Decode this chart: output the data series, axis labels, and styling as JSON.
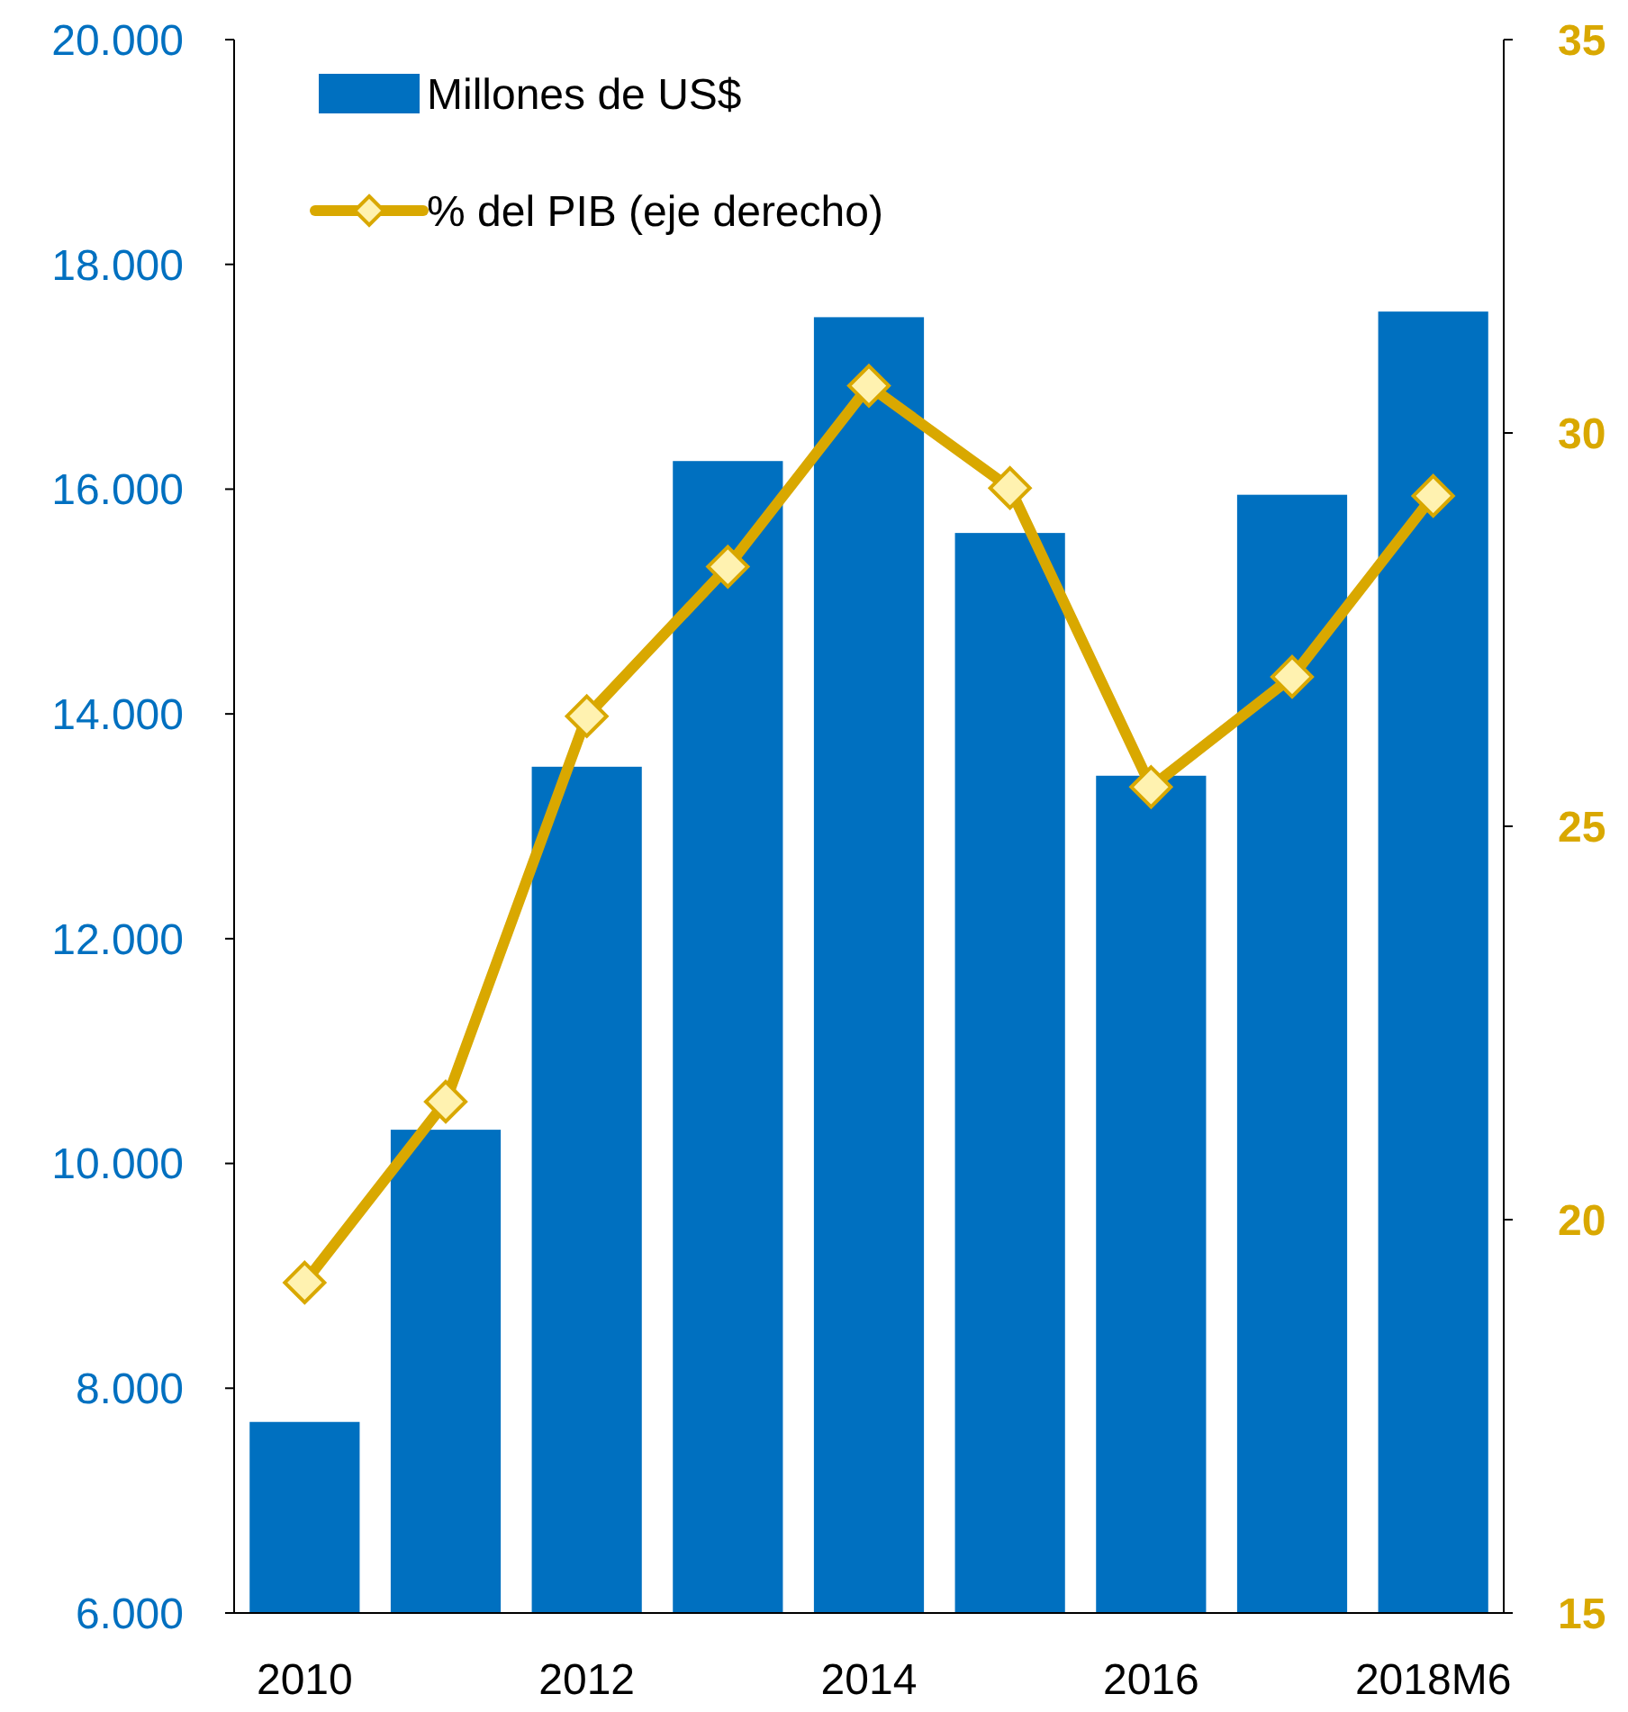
{
  "chart_data": {
    "type": "bar",
    "categories": [
      "2010",
      null,
      "2012",
      null,
      "2014",
      null,
      "2016",
      null,
      "2018M6"
    ],
    "series": [
      {
        "name": "Millones de US$",
        "color": "#0070c0",
        "values": [
          7700,
          10300,
          13530,
          16250,
          17530,
          15610,
          13450,
          15950,
          17580
        ]
      },
      {
        "name": "% del PIB (eje derecho)",
        "type": "line",
        "axis": "y2",
        "color": "#d9a800",
        "marker": "diamond",
        "values": [
          19.2,
          21.5,
          26.4,
          28.3,
          30.6,
          29.3,
          25.5,
          26.9,
          29.2
        ]
      }
    ],
    "ylim": [
      6000,
      20000
    ],
    "yticks": [
      {
        "value": 6000,
        "label": "6.000"
      },
      {
        "value": 8000,
        "label": "8.000"
      },
      {
        "value": 10000,
        "label": "10.000"
      },
      {
        "value": 12000,
        "label": "12.000"
      },
      {
        "value": 14000,
        "label": "14.000"
      },
      {
        "value": 16000,
        "label": "16.000"
      },
      {
        "value": 18000,
        "label": "18.000"
      },
      {
        "value": 20000,
        "label": "20.000"
      }
    ],
    "y2lim": [
      15,
      35
    ],
    "y2ticks": [
      15,
      20,
      25,
      30,
      35
    ],
    "grid": false,
    "legend": "top left"
  }
}
